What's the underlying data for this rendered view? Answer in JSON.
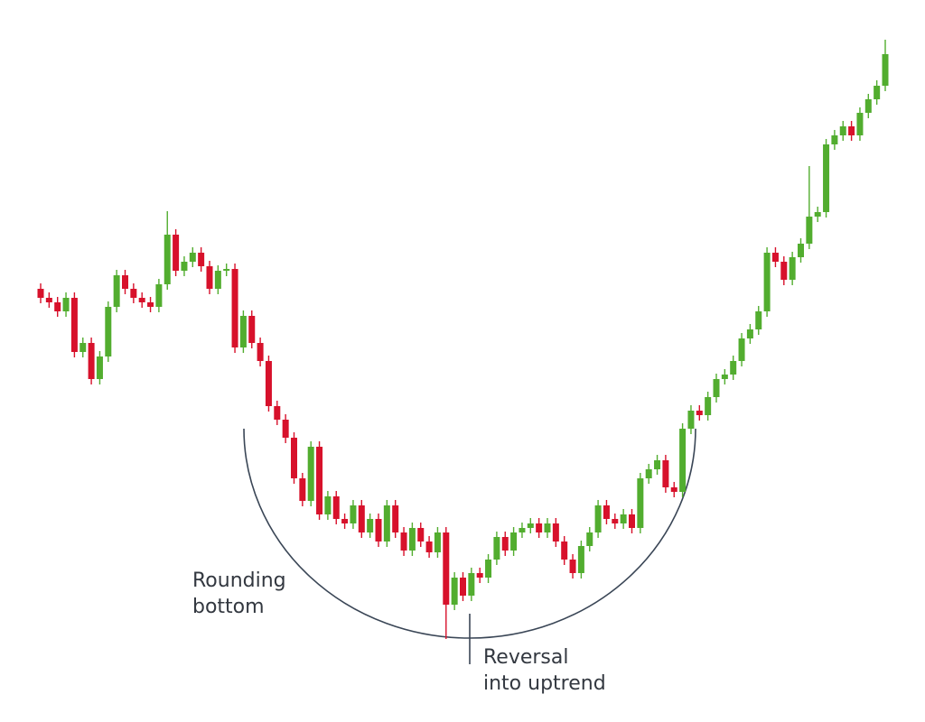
{
  "chart_data": {
    "type": "candlestick",
    "ylim": [
      0,
      800
    ],
    "up_color": "#52ad2f",
    "down_color": "#d7112b",
    "open": [
      480,
      470,
      465,
      455,
      470,
      410,
      420,
      380,
      405,
      460,
      495,
      480,
      470,
      465,
      460,
      485,
      540,
      500,
      510,
      520,
      505,
      480,
      500,
      502,
      415,
      450,
      420,
      400,
      350,
      335,
      315,
      270,
      245,
      305,
      230,
      250,
      225,
      220,
      240,
      210,
      225,
      200,
      240,
      210,
      190,
      215,
      200,
      188,
      210,
      130,
      160,
      140,
      165,
      160,
      180,
      205,
      190,
      210,
      215,
      220,
      210,
      220,
      200,
      180,
      165,
      195,
      210,
      240,
      225,
      220,
      230,
      215,
      270,
      280,
      290,
      260,
      255,
      325,
      345,
      340,
      360,
      380,
      385,
      400,
      425,
      435,
      455,
      520,
      510,
      490,
      515,
      530,
      560,
      565,
      640,
      650,
      660,
      650,
      675,
      690,
      705
    ],
    "high": [
      486,
      476,
      471,
      476,
      476,
      426,
      426,
      411,
      466,
      501,
      501,
      486,
      476,
      471,
      491,
      566,
      546,
      516,
      526,
      526,
      511,
      506,
      508,
      508,
      456,
      456,
      426,
      406,
      356,
      341,
      321,
      276,
      311,
      311,
      256,
      256,
      231,
      246,
      246,
      231,
      231,
      246,
      246,
      216,
      221,
      221,
      206,
      216,
      216,
      166,
      166,
      171,
      171,
      186,
      211,
      211,
      216,
      221,
      226,
      226,
      226,
      226,
      206,
      186,
      201,
      216,
      246,
      246,
      231,
      236,
      236,
      276,
      286,
      296,
      296,
      266,
      331,
      351,
      351,
      366,
      386,
      391,
      406,
      431,
      441,
      461,
      526,
      526,
      516,
      521,
      536,
      616,
      571,
      646,
      656,
      666,
      666,
      681,
      696,
      711,
      756
    ],
    "low": [
      464,
      459,
      449,
      449,
      404,
      404,
      374,
      374,
      399,
      454,
      474,
      464,
      459,
      454,
      454,
      479,
      494,
      494,
      504,
      499,
      474,
      474,
      494,
      409,
      409,
      414,
      394,
      344,
      329,
      309,
      264,
      239,
      239,
      224,
      224,
      219,
      214,
      214,
      204,
      204,
      194,
      194,
      204,
      184,
      184,
      194,
      182,
      182,
      92,
      124,
      134,
      134,
      154,
      154,
      174,
      184,
      184,
      204,
      209,
      204,
      204,
      194,
      174,
      159,
      159,
      189,
      204,
      219,
      214,
      214,
      209,
      209,
      264,
      274,
      254,
      249,
      249,
      319,
      334,
      334,
      354,
      374,
      379,
      394,
      419,
      429,
      449,
      504,
      484,
      484,
      509,
      524,
      554,
      559,
      634,
      644,
      644,
      644,
      669,
      684,
      699
    ],
    "close": [
      470,
      465,
      455,
      470,
      410,
      420,
      380,
      405,
      460,
      495,
      480,
      470,
      465,
      460,
      485,
      540,
      500,
      510,
      520,
      505,
      480,
      500,
      502,
      415,
      450,
      420,
      400,
      350,
      335,
      315,
      270,
      245,
      305,
      230,
      250,
      225,
      220,
      240,
      210,
      225,
      200,
      240,
      210,
      190,
      215,
      200,
      188,
      210,
      130,
      160,
      140,
      165,
      160,
      180,
      205,
      190,
      210,
      215,
      220,
      210,
      220,
      200,
      180,
      165,
      195,
      210,
      240,
      225,
      220,
      230,
      215,
      270,
      280,
      290,
      260,
      255,
      325,
      345,
      340,
      360,
      380,
      385,
      400,
      425,
      435,
      455,
      520,
      510,
      490,
      515,
      530,
      560,
      565,
      640,
      650,
      660,
      650,
      675,
      690,
      705,
      740
    ],
    "annotations": [
      {
        "lines": [
          "Rounding",
          "bottom"
        ]
      },
      {
        "lines": [
          "Reversal",
          "into uptrend"
        ]
      }
    ]
  }
}
